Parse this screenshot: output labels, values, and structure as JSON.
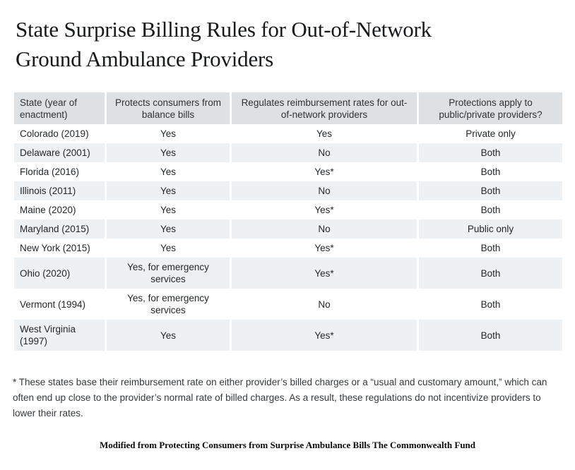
{
  "title_lines": {
    "line1": "State Surprise Billing Rules for Out-of-Network",
    "line2": "Ground Ambulance Providers"
  },
  "table": {
    "columns": [
      "State (year of\nenactment)",
      "Protects consumers from\nbalance bills",
      "Regulates reimbursement rates for out-\nof-network providers",
      "Protections apply to\npublic/private providers?"
    ],
    "rows": [
      [
        "Colorado (2019)",
        "Yes",
        "Yes",
        "Private only"
      ],
      [
        "Delaware (2001)",
        "Yes",
        "No",
        "Both"
      ],
      [
        "Florida (2016)",
        "Yes",
        "Yes*",
        "Both"
      ],
      [
        "Illinois (2011)",
        "Yes",
        "No",
        "Both"
      ],
      [
        "Maine (2020)",
        "Yes",
        "Yes*",
        "Both"
      ],
      [
        "Maryland (2015)",
        "Yes",
        "No",
        "Public only"
      ],
      [
        "New York (2015)",
        "Yes",
        "Yes*",
        "Both"
      ],
      [
        "Ohio (2020)",
        "Yes, for emergency\nservices",
        "Yes*",
        "Both"
      ],
      [
        "Vermont (1994)",
        "Yes, for emergency\nservices",
        "No",
        "Both"
      ],
      [
        "West Virginia (1997)",
        "Yes",
        "Yes*",
        "Both"
      ]
    ]
  },
  "footnote": "* These states base their reimbursement rate on either provider’s billed charges or a “usual and customary amount,” which can often end up close to the provider’s normal rate of billed charges. As a result, these regulations do not incentivize providers to lower their rates.",
  "source": "Modified from Protecting Consumers from Surprise Ambulance Bills The Commonwealth Fund",
  "colors": {
    "header_bg": "#dde1e4",
    "stripe_bg": "#eef1f4",
    "page_bg": "#ffffff",
    "title_text": "#17191b",
    "body_text": "#24272a"
  }
}
